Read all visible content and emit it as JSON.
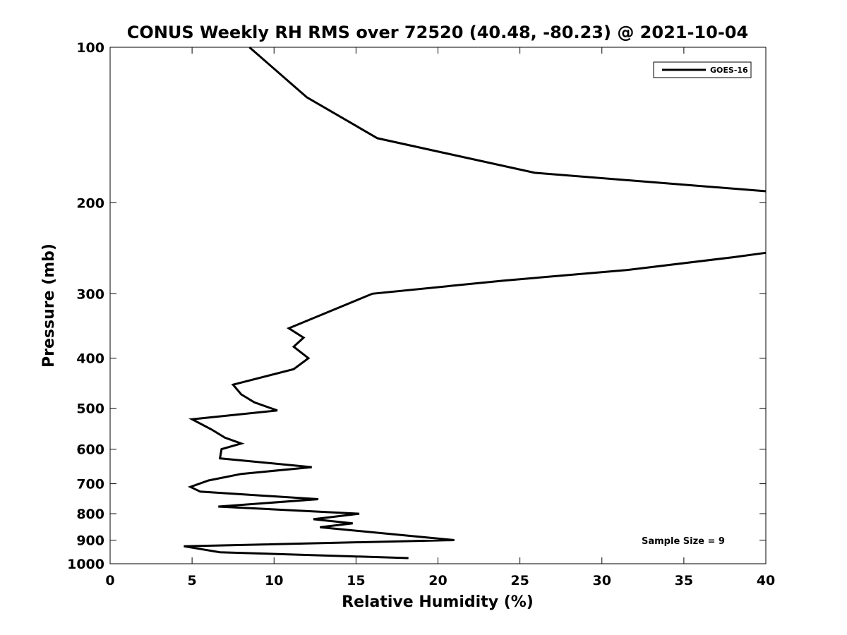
{
  "chart_data": {
    "type": "line",
    "title": "CONUS Weekly RH RMS over 72520 (40.48, -80.23) @ 2021-10-04",
    "xlabel": "Relative Humidity (%)",
    "ylabel": "Pressure (mb)",
    "xlim": [
      0,
      40
    ],
    "ylim": [
      100,
      1000
    ],
    "yscale": "log",
    "y_reversed": true,
    "x_ticks": [
      0,
      5,
      10,
      15,
      20,
      25,
      30,
      35,
      40
    ],
    "y_ticks": [
      100,
      200,
      300,
      400,
      500,
      600,
      700,
      800,
      900,
      1000
    ],
    "grid": false,
    "legend_position": "top-right",
    "annotation": "Sample Size = 9",
    "series": [
      {
        "name": "GOES-16",
        "color": "#000000",
        "points": [
          [
            8.5,
            100
          ],
          [
            12.0,
            125
          ],
          [
            16.3,
            150
          ],
          [
            25.9,
            175
          ],
          [
            40.0,
            190
          ],
          [
            null,
            200
          ],
          [
            null,
            225
          ],
          [
            40.0,
            250
          ],
          [
            38.0,
            255
          ],
          [
            31.5,
            270
          ],
          [
            24.0,
            283
          ],
          [
            16.0,
            300
          ],
          [
            10.9,
            350
          ],
          [
            11.8,
            365
          ],
          [
            11.2,
            380
          ],
          [
            12.1,
            400
          ],
          [
            11.2,
            420
          ],
          [
            7.5,
            450
          ],
          [
            8.0,
            470
          ],
          [
            8.8,
            487
          ],
          [
            10.2,
            505
          ],
          [
            5.0,
            525
          ],
          [
            6.2,
            550
          ],
          [
            7.0,
            570
          ],
          [
            8.0,
            585
          ],
          [
            6.8,
            600
          ],
          [
            6.7,
            625
          ],
          [
            12.3,
            650
          ],
          [
            8.0,
            670
          ],
          [
            6.0,
            690
          ],
          [
            4.9,
            710
          ],
          [
            5.5,
            725
          ],
          [
            12.7,
            750
          ],
          [
            6.6,
            775
          ],
          [
            15.2,
            800
          ],
          [
            12.4,
            820
          ],
          [
            14.8,
            835
          ],
          [
            12.8,
            850
          ],
          [
            21.0,
            900
          ],
          [
            4.5,
            925
          ],
          [
            6.7,
            950
          ],
          [
            18.2,
            975
          ]
        ]
      }
    ]
  }
}
